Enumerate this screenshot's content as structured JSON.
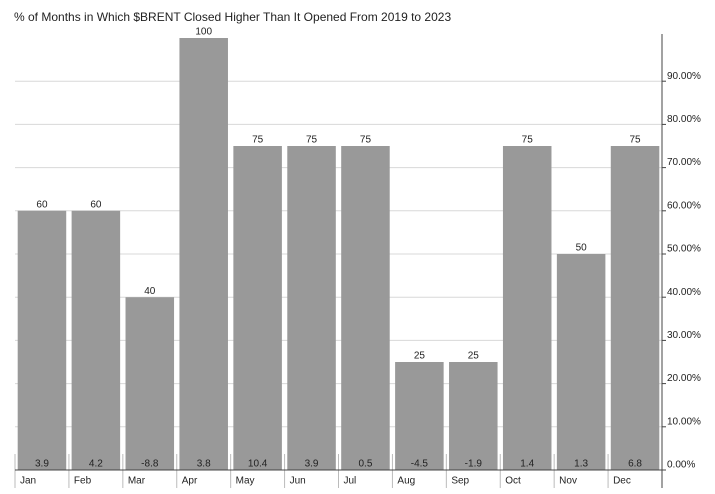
{
  "chart_data": {
    "type": "bar",
    "title": "% of Months in Which $BRENT Closed Higher Than It Opened From 2019 to 2023",
    "categories": [
      "Jan",
      "Feb",
      "Mar",
      "Apr",
      "May",
      "Jun",
      "Jul",
      "Aug",
      "Sep",
      "Oct",
      "Nov",
      "Dec"
    ],
    "values": [
      60,
      60,
      40,
      100,
      75,
      75,
      75,
      25,
      25,
      75,
      50,
      75
    ],
    "bottom_values": [
      3.9,
      4.2,
      -8.8,
      3.8,
      10.4,
      3.9,
      0.5,
      -4.5,
      -1.9,
      1.4,
      1.3,
      6.8
    ],
    "color": "#999999",
    "ylim": [
      0,
      100
    ],
    "yticks": [
      {
        "value": 0,
        "label": "0.00%"
      },
      {
        "value": 10,
        "label": "10.00%"
      },
      {
        "value": 20,
        "label": "20.00%"
      },
      {
        "value": 30,
        "label": "30.00%"
      },
      {
        "value": 40,
        "label": "40.00%"
      },
      {
        "value": 50,
        "label": "50.00%"
      },
      {
        "value": 60,
        "label": "60.00%"
      },
      {
        "value": 70,
        "label": "70.00%"
      },
      {
        "value": 80,
        "label": "80.00%"
      },
      {
        "value": 90,
        "label": "90.00%"
      }
    ],
    "grid": true
  }
}
